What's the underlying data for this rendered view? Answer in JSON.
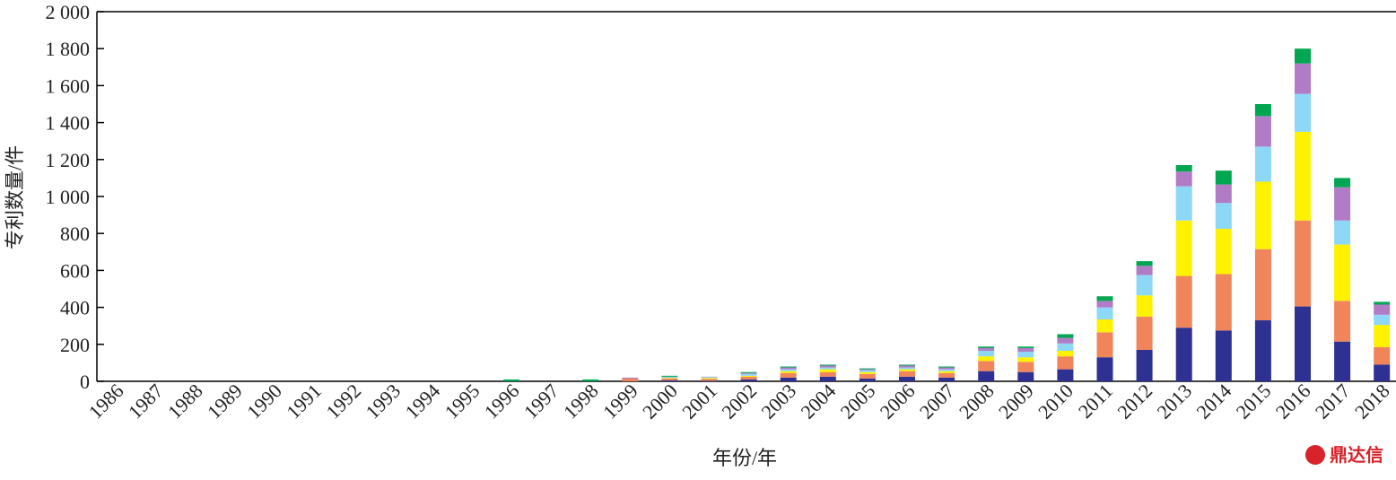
{
  "chart_data": {
    "type": "stacked_bar",
    "x_label": "年份/年",
    "y_label": "专利数量/件",
    "categories": [
      "1986",
      "1987",
      "1988",
      "1989",
      "1990",
      "1991",
      "1992",
      "1993",
      "1994",
      "1995",
      "1996",
      "1997",
      "1998",
      "1999",
      "2000",
      "2001",
      "2002",
      "2003",
      "2004",
      "2005",
      "2006",
      "2007",
      "2008",
      "2009",
      "2010",
      "2011",
      "2012",
      "2013",
      "2014",
      "2015",
      "2016",
      "2017",
      "2018"
    ],
    "series": [
      {
        "color": "#2e3192",
        "values": [
          0,
          0,
          0,
          0,
          0,
          0,
          0,
          0,
          0,
          0,
          0,
          0,
          0,
          0,
          5,
          3,
          10,
          20,
          25,
          15,
          25,
          20,
          55,
          50,
          65,
          130,
          170,
          290,
          275,
          330,
          405,
          215,
          90
        ]
      },
      {
        "color": "#f0845a",
        "values": [
          0,
          0,
          0,
          0,
          0,
          0,
          0,
          0,
          0,
          0,
          0,
          0,
          0,
          15,
          10,
          10,
          15,
          25,
          25,
          25,
          30,
          25,
          55,
          55,
          70,
          135,
          180,
          280,
          305,
          385,
          465,
          220,
          95
        ]
      },
      {
        "color": "#fff200",
        "values": [
          0,
          0,
          0,
          0,
          0,
          0,
          0,
          0,
          0,
          0,
          0,
          0,
          0,
          0,
          3,
          5,
          5,
          10,
          15,
          10,
          10,
          10,
          25,
          25,
          30,
          70,
          115,
          300,
          245,
          365,
          480,
          305,
          120
        ]
      },
      {
        "color": "#8dd7f7",
        "values": [
          0,
          0,
          0,
          0,
          0,
          0,
          0,
          0,
          0,
          0,
          0,
          0,
          0,
          0,
          5,
          5,
          10,
          10,
          10,
          10,
          10,
          10,
          30,
          30,
          40,
          65,
          110,
          185,
          140,
          190,
          205,
          130,
          55
        ]
      },
      {
        "color": "#b07cc6",
        "values": [
          0,
          0,
          0,
          0,
          0,
          0,
          0,
          0,
          0,
          0,
          0,
          0,
          0,
          5,
          2,
          2,
          5,
          10,
          10,
          5,
          10,
          10,
          15,
          20,
          30,
          35,
          50,
          80,
          100,
          165,
          165,
          180,
          55
        ]
      },
      {
        "color": "#00a651",
        "values": [
          0,
          0,
          0,
          0,
          0,
          0,
          0,
          0,
          0,
          0,
          10,
          0,
          10,
          0,
          5,
          0,
          5,
          5,
          5,
          5,
          5,
          5,
          8,
          8,
          20,
          25,
          25,
          35,
          75,
          65,
          80,
          50,
          15
        ]
      }
    ],
    "ylim": [
      0,
      2000
    ],
    "yticks": [
      0,
      200,
      400,
      600,
      800,
      {
        "value": 1000,
        "label": "1 000"
      },
      {
        "value": 1200,
        "label": "1 200"
      },
      {
        "value": 1400,
        "label": "1 400"
      },
      {
        "value": 1600,
        "label": "1 600"
      },
      {
        "value": 1800,
        "label": "1 800"
      },
      {
        "value": 2000,
        "label": "2 000"
      }
    ]
  },
  "watermark": "鼎达信"
}
